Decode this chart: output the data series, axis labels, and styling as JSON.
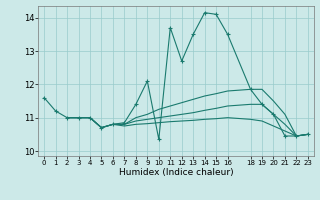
{
  "xlabel": "Humidex (Indice chaleur)",
  "ylabel": "",
  "background_color": "#cce9e8",
  "grid_color": "#99cccc",
  "line_color": "#1a7a6e",
  "xlim": [
    -0.5,
    23.5
  ],
  "ylim": [
    9.85,
    14.35
  ],
  "xticks": [
    0,
    1,
    2,
    3,
    4,
    5,
    6,
    7,
    8,
    9,
    10,
    11,
    12,
    13,
    14,
    15,
    16,
    18,
    19,
    20,
    21,
    22,
    23
  ],
  "yticks": [
    10,
    11,
    12,
    13,
    14
  ],
  "lines": [
    {
      "x": [
        0,
        1,
        2,
        3,
        4,
        5,
        6,
        7,
        8,
        9,
        10,
        11,
        12,
        13,
        14,
        15,
        16,
        18,
        19,
        20,
        21,
        22,
        23
      ],
      "y": [
        11.6,
        11.2,
        11.0,
        11.0,
        11.0,
        10.7,
        10.8,
        10.85,
        11.4,
        12.1,
        10.35,
        13.7,
        12.7,
        13.5,
        14.15,
        14.1,
        13.5,
        11.85,
        11.4,
        11.1,
        10.45,
        10.45,
        10.5
      ],
      "marker": true
    },
    {
      "x": [
        2,
        3,
        4,
        5,
        6,
        7,
        8,
        9,
        10,
        11,
        12,
        13,
        14,
        15,
        16,
        18,
        19,
        20,
        21,
        22,
        23
      ],
      "y": [
        11.0,
        11.0,
        11.0,
        10.7,
        10.8,
        10.8,
        11.0,
        11.1,
        11.25,
        11.35,
        11.45,
        11.55,
        11.65,
        11.72,
        11.8,
        11.85,
        11.85,
        11.5,
        11.1,
        10.45,
        10.5
      ],
      "marker": false
    },
    {
      "x": [
        2,
        3,
        4,
        5,
        6,
        7,
        8,
        9,
        10,
        11,
        12,
        13,
        14,
        15,
        16,
        18,
        19,
        20,
        21,
        22,
        23
      ],
      "y": [
        11.0,
        11.0,
        11.0,
        10.7,
        10.8,
        10.8,
        10.9,
        10.95,
        11.0,
        11.05,
        11.1,
        11.15,
        11.22,
        11.28,
        11.35,
        11.4,
        11.4,
        11.1,
        10.8,
        10.45,
        10.5
      ],
      "marker": false
    },
    {
      "x": [
        2,
        3,
        4,
        5,
        6,
        7,
        8,
        9,
        10,
        11,
        12,
        13,
        14,
        15,
        16,
        18,
        19,
        20,
        21,
        22,
        23
      ],
      "y": [
        11.0,
        11.0,
        11.0,
        10.7,
        10.8,
        10.75,
        10.8,
        10.82,
        10.85,
        10.88,
        10.9,
        10.92,
        10.95,
        10.97,
        11.0,
        10.95,
        10.9,
        10.75,
        10.6,
        10.45,
        10.5
      ],
      "marker": false
    }
  ]
}
